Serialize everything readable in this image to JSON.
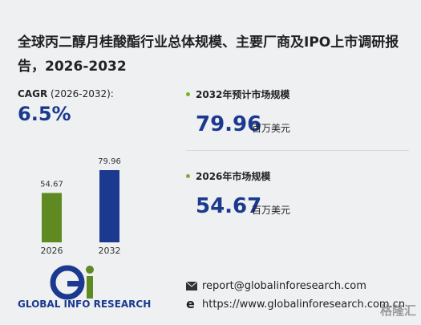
{
  "title": "全球丙二醇月桂酸酯行业总体规模、主要厂商及IPO上市调研报告，2026-2032",
  "cagr": {
    "label": "CAGR",
    "period": "(2026-2032):",
    "value": "6.5%"
  },
  "stats": [
    {
      "label": "2032年预计市场规模",
      "value": "79.96",
      "unit": "百万美元"
    },
    {
      "label": "2026年市场规模",
      "value": "54.67",
      "unit": "百万美元"
    }
  ],
  "chart_data": {
    "type": "bar",
    "categories": [
      "2026",
      "2032"
    ],
    "values": [
      54.67,
      79.96
    ],
    "colors": [
      "#5f8a22",
      "#1b3a8f"
    ]
  },
  "logo": {
    "text": "GLOBAL INFO RESEARCH"
  },
  "contact": {
    "email": "report@globalinforesearch.com",
    "website": "https://www.globalinforesearch.com.cn"
  },
  "watermark": "格隆汇"
}
